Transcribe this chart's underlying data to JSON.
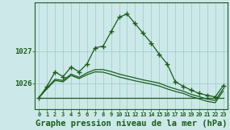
{
  "background_color": "#cce8e8",
  "plot_bg_color": "#cce8e8",
  "grid_color": "#99cccc",
  "line_color": "#1a5c1a",
  "xlabel": "Graphe pression niveau de la mer (hPa)",
  "xlabel_fontsize": 7.5,
  "xlim": [
    -0.5,
    23.5
  ],
  "ylim": [
    1025.2,
    1028.5
  ],
  "yticks": [
    1026,
    1027
  ],
  "xticks": [
    0,
    1,
    2,
    3,
    4,
    5,
    6,
    7,
    8,
    9,
    10,
    11,
    12,
    13,
    14,
    15,
    16,
    17,
    18,
    19,
    20,
    21,
    22,
    23
  ],
  "xtick_labels": [
    "0",
    "1",
    "2",
    "3",
    "4",
    "5",
    "6",
    "7",
    "8",
    "9",
    "10",
    "11",
    "12",
    "13",
    "14",
    "15",
    "16",
    "17",
    "18",
    "19",
    "20",
    "21",
    "22",
    "23"
  ],
  "series": [
    {
      "x": [
        0,
        1,
        2,
        3,
        4,
        5,
        6,
        7,
        8,
        9,
        10,
        11,
        12,
        13,
        14,
        15,
        16,
        17,
        18,
        19,
        20,
        21,
        22,
        23
      ],
      "y": [
        1025.55,
        1025.9,
        1026.35,
        1026.2,
        1026.5,
        1026.35,
        1026.6,
        1027.1,
        1027.15,
        1027.6,
        1028.05,
        1028.15,
        1027.85,
        1027.55,
        1027.25,
        1026.9,
        1026.6,
        1026.05,
        1025.9,
        1025.78,
        1025.68,
        1025.62,
        1025.57,
        1025.92
      ],
      "style": "line_marker"
    },
    {
      "x": [
        0,
        23
      ],
      "y": [
        1025.55,
        1025.55
      ],
      "style": "solid_flat"
    },
    {
      "x": [
        0,
        1,
        2,
        3,
        4,
        5,
        6,
        7,
        8,
        9,
        10,
        11,
        12,
        13,
        14,
        15,
        16,
        17,
        18,
        19,
        20,
        21,
        22,
        23
      ],
      "y": [
        1025.55,
        1025.85,
        1026.12,
        1026.08,
        1026.28,
        1026.18,
        1026.32,
        1026.42,
        1026.42,
        1026.36,
        1026.28,
        1026.22,
        1026.16,
        1026.1,
        1026.05,
        1026.0,
        1025.9,
        1025.82,
        1025.75,
        1025.65,
        1025.58,
        1025.5,
        1025.46,
        1025.82
      ],
      "style": "solid"
    },
    {
      "x": [
        0,
        1,
        2,
        3,
        4,
        5,
        6,
        7,
        8,
        9,
        10,
        11,
        12,
        13,
        14,
        15,
        16,
        17,
        18,
        19,
        20,
        21,
        22,
        23
      ],
      "y": [
        1025.55,
        1025.83,
        1026.08,
        1026.04,
        1026.24,
        1026.14,
        1026.26,
        1026.35,
        1026.34,
        1026.27,
        1026.19,
        1026.13,
        1026.07,
        1026.02,
        1025.97,
        1025.91,
        1025.82,
        1025.74,
        1025.68,
        1025.58,
        1025.51,
        1025.43,
        1025.39,
        1025.75
      ],
      "style": "solid"
    }
  ]
}
